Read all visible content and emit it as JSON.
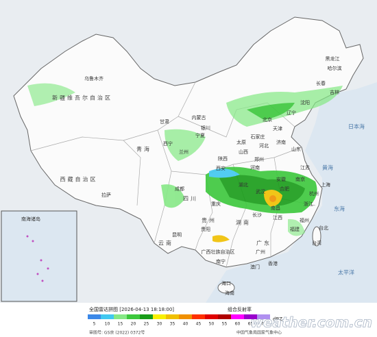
{
  "labels": [
    "新疆维吾尔自治区",
    "乌鲁木齐",
    "西藏自治区",
    "拉萨",
    "青海",
    "西宁",
    "甘肃",
    "兰州",
    "内蒙古",
    "宁夏",
    "银川",
    "黑龙江",
    "哈尔滨",
    "吉林",
    "长春",
    "辽宁",
    "沈阳",
    "北京",
    "天津",
    "河北",
    "石家庄",
    "山西",
    "太原",
    "陕西",
    "西安",
    "山东",
    "济南",
    "河南",
    "郑州",
    "江苏",
    "南京",
    "安徽",
    "合肥",
    "上海",
    "湖北",
    "武汉",
    "四川",
    "成都",
    "重庆",
    "浙江",
    "杭州",
    "湖南",
    "长沙",
    "江西",
    "南昌",
    "贵州",
    "贵阳",
    "福建",
    "福州",
    "台湾",
    "台北",
    "云南",
    "昆明",
    "广西壮族自治区",
    "南宁",
    "广东",
    "广州",
    "香港",
    "澳门",
    "海南",
    "海口",
    "日本海",
    "黄海",
    "东海",
    "太平洋",
    "南海诸岛"
  ],
  "legend": {
    "title": "全国雷达拼图 [2026-04-13 18:18:00]",
    "product": "组合反射率",
    "unit": "dBZ",
    "items": [
      {
        "value": 5,
        "color": "#3b88e8"
      },
      {
        "value": 10,
        "color": "#40c8f0"
      },
      {
        "value": 15,
        "color": "#86e886"
      },
      {
        "value": 20,
        "color": "#3cc83c"
      },
      {
        "value": 25,
        "color": "#189c18"
      },
      {
        "value": 30,
        "color": "#f8f000"
      },
      {
        "value": 35,
        "color": "#f0c000"
      },
      {
        "value": 40,
        "color": "#f09000"
      },
      {
        "value": 45,
        "color": "#ff3000"
      },
      {
        "value": 50,
        "color": "#e00000"
      },
      {
        "value": 55,
        "color": "#b00000"
      },
      {
        "value": 60,
        "color": "#ff00ff"
      },
      {
        "value": 65,
        "color": "#9900cc"
      },
      {
        "value": 70,
        "color": "#b090f0"
      }
    ]
  },
  "footer": {
    "approval": "审图号: GS京 (2022) 0372号",
    "agency": "中国气象局国家气象中心",
    "watermark": "weather.com.cn"
  }
}
